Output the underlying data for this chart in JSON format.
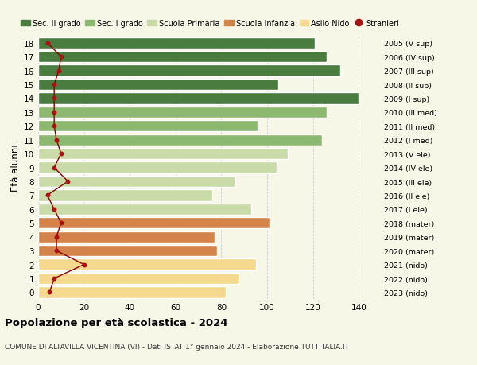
{
  "ages": [
    0,
    1,
    2,
    3,
    4,
    5,
    6,
    7,
    8,
    9,
    10,
    11,
    12,
    13,
    14,
    15,
    16,
    17,
    18
  ],
  "bar_values": [
    82,
    88,
    95,
    78,
    77,
    101,
    93,
    76,
    86,
    104,
    109,
    124,
    96,
    126,
    140,
    105,
    132,
    126,
    121
  ],
  "bar_colors": [
    "#f5d98e",
    "#f5d98e",
    "#f5d98e",
    "#d4844a",
    "#d4844a",
    "#d4844a",
    "#c8dba8",
    "#c8dba8",
    "#c8dba8",
    "#c8dba8",
    "#c8dba8",
    "#8db870",
    "#8db870",
    "#8db870",
    "#4a7c40",
    "#4a7c40",
    "#4a7c40",
    "#4a7c40",
    "#4a7c40"
  ],
  "stranieri_values": [
    5,
    7,
    20,
    8,
    8,
    10,
    7,
    4,
    13,
    7,
    10,
    8,
    7,
    7,
    7,
    7,
    9,
    10,
    4
  ],
  "right_labels": [
    "2023 (nido)",
    "2022 (nido)",
    "2021 (nido)",
    "2020 (mater)",
    "2019 (mater)",
    "2018 (mater)",
    "2017 (I ele)",
    "2016 (II ele)",
    "2015 (III ele)",
    "2014 (IV ele)",
    "2013 (V ele)",
    "2012 (I med)",
    "2011 (II med)",
    "2010 (III med)",
    "2009 (I sup)",
    "2008 (II sup)",
    "2007 (III sup)",
    "2006 (IV sup)",
    "2005 (V sup)"
  ],
  "legend_labels": [
    "Sec. II grado",
    "Sec. I grado",
    "Scuola Primaria",
    "Scuola Infanzia",
    "Asilo Nido",
    "Stranieri"
  ],
  "legend_colors": [
    "#4a7c40",
    "#8db870",
    "#c8dba8",
    "#d4844a",
    "#f5d98e",
    "#aa1111"
  ],
  "ylabel_left": "Età alunni",
  "title": "Popolazione per età scolastica - 2024",
  "subtitle": "COMUNE DI ALTAVILLA VICENTINA (VI) - Dati ISTAT 1° gennaio 2024 - Elaborazione TUTTITALIA.IT",
  "xlim": [
    0,
    150
  ],
  "xticks": [
    0,
    20,
    40,
    60,
    80,
    100,
    120,
    140
  ],
  "background_color": "#f7f7e8",
  "grid_color": "#cccccc"
}
